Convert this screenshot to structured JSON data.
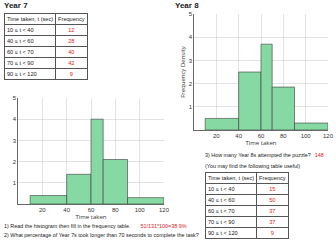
{
  "year7": {
    "heading": "Year 7",
    "table": {
      "header": [
        "Time taken, t (sec)",
        "Frequency"
      ],
      "rows": [
        [
          "10 ≤ t < 40",
          12
        ],
        [
          "40 ≤ t < 60",
          28
        ],
        [
          "60 ≤ t < 70",
          40
        ],
        [
          "70 ≤ t < 90",
          42
        ],
        [
          "90 ≤ t < 120",
          9
        ]
      ]
    },
    "questions": [
      {
        "text": "1) Read the histogram then fill in the frequency table.",
        "answer": "51/131*100=38.9%"
      },
      {
        "text": "2) What percentage of Year 7s took longer than 70 seconds to complete the task?"
      }
    ]
  },
  "year8": {
    "heading": "Year 8",
    "question": {
      "text": "3) How many Year 8s attempted the puzzle?",
      "answer": 148
    },
    "note": "(You may find the following table useful)",
    "table": {
      "header": [
        "Time taken, t (sec)",
        "Frequency"
      ],
      "rows": [
        [
          "10 ≤ t < 40",
          15
        ],
        [
          "40 ≤ t < 60",
          50
        ],
        [
          "60 ≤ t < 70",
          37
        ],
        [
          "70 ≤ t < 90",
          37
        ],
        [
          "90 ≤ t < 120",
          9
        ]
      ]
    }
  },
  "chart_data": [
    {
      "type": "histogram",
      "x_label": "Time taken",
      "bins": [
        10,
        40,
        60,
        70,
        90,
        120
      ],
      "values": [
        0.4,
        1.4,
        4,
        2.1,
        0.3
      ],
      "color": "#86d9a3",
      "xlim": [
        0,
        120
      ],
      "xticks": [
        20,
        40,
        60,
        80,
        100,
        120
      ],
      "ylim": [
        0,
        5
      ],
      "yticks": [
        1,
        2,
        3,
        4,
        5
      ],
      "grid": true
    },
    {
      "type": "histogram",
      "x_label": "Time taken",
      "y_label": "Frequency Density",
      "bins": [
        10,
        40,
        60,
        70,
        90,
        120
      ],
      "values": [
        0.5,
        2.5,
        3.7,
        1.85,
        0.3
      ],
      "color": "#86d9a3",
      "xlim": [
        0,
        120
      ],
      "xticks": [
        20,
        40,
        60,
        80,
        100,
        120
      ],
      "ylim": [
        0,
        5
      ],
      "yticks": [
        1,
        2,
        3,
        4,
        5
      ],
      "grid": true
    }
  ]
}
